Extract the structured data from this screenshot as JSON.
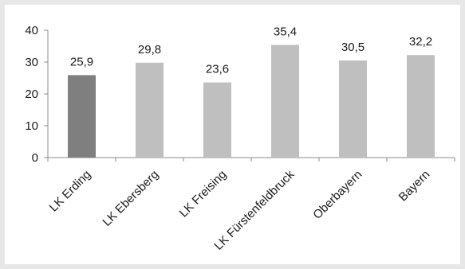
{
  "chart_data": {
    "type": "bar",
    "categories": [
      "LK Erding",
      "LK Ebersberg",
      "LK Freising",
      "LK Fürstenfeldbruck",
      "Oberbayern",
      "Bayern"
    ],
    "values": [
      25.9,
      29.8,
      23.6,
      35.4,
      30.5,
      32.2
    ],
    "value_labels": [
      "25,9",
      "29,8",
      "23,6",
      "35,4",
      "30,5",
      "32,2"
    ],
    "ylim": [
      0,
      40
    ],
    "yticks": [
      0,
      10,
      20,
      30,
      40
    ],
    "ytick_labels": [
      "0",
      "10",
      "20",
      "30",
      "40"
    ],
    "grid": false,
    "legend": "none",
    "colors": {
      "highlight": "#7f7f7f",
      "default": "#bfbfbf",
      "axis": "#8c8c8c",
      "frame": "#e7e7e7"
    },
    "highlight_index": 0
  }
}
